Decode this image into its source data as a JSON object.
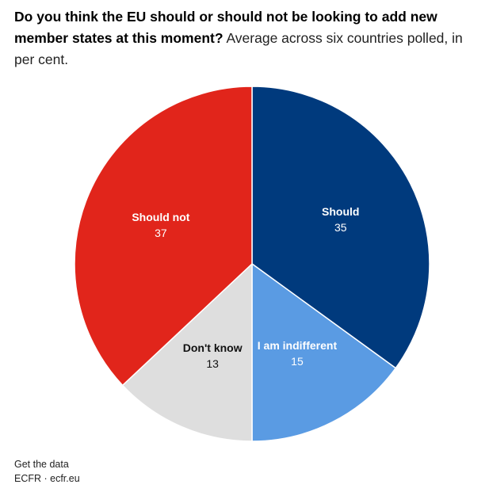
{
  "chart_data": {
    "type": "pie",
    "title": "Do you think the EU should or should not be looking to add new member states at this moment?",
    "subtitle": "Average across six countries polled, in per cent.",
    "slices": [
      {
        "label": "Should",
        "value": 35,
        "color": "#003a7d",
        "text_color": "#ffffff"
      },
      {
        "label": "I am indifferent",
        "value": 15,
        "color": "#5a9be3",
        "text_color": "#ffffff"
      },
      {
        "label": "Don't know",
        "value": 13,
        "color": "#dedede",
        "text_color": "#111111"
      },
      {
        "label": "Should not",
        "value": 37,
        "color": "#e1251b",
        "text_color": "#ffffff"
      }
    ]
  },
  "footer": {
    "get_data": "Get the data",
    "source": "ECFR · ecfr.eu"
  }
}
